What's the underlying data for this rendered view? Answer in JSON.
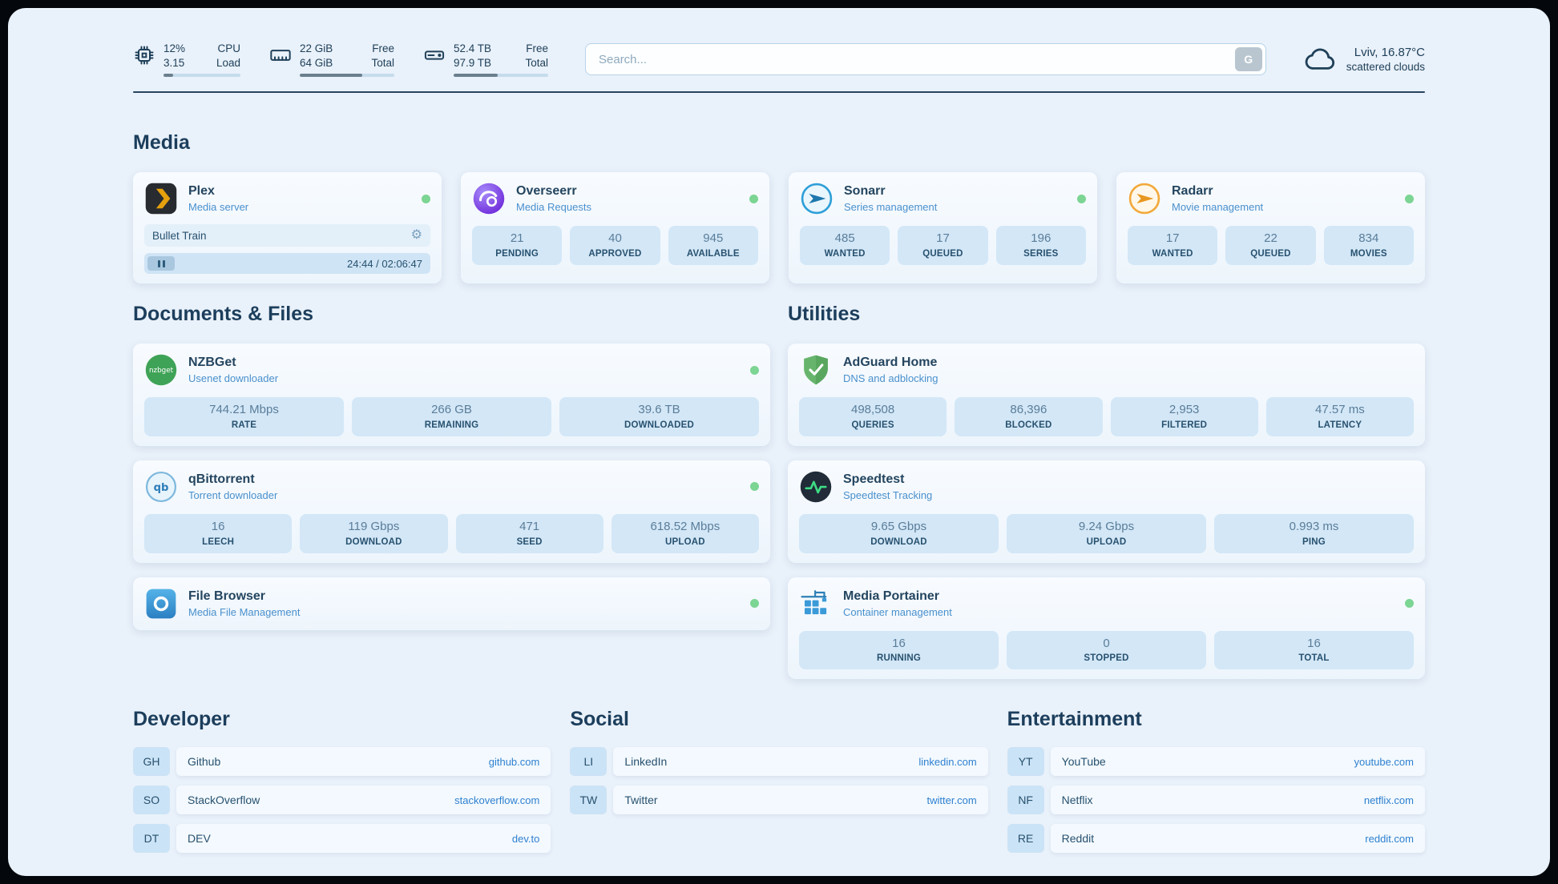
{
  "palette": {
    "background": "#e9f1fa",
    "card": "#f4f9fe",
    "stat_box": "#d3e7f7",
    "link": "#2f80d0",
    "status_ok": "#7cd593",
    "heading": "#1c3e5c"
  },
  "icons": {
    "gear": "⚙"
  },
  "topbar": {
    "cpu": {
      "value": "12%",
      "load": "3.15",
      "label_top": "CPU",
      "label_bottom": "Load",
      "percent": 12
    },
    "memory": {
      "free": "22 GiB",
      "total": "64 GiB",
      "label_top": "Free",
      "label_bottom": "Total",
      "percent": 66
    },
    "disk": {
      "free": "52.4 TB",
      "total": "97.9 TB",
      "label_top": "Free",
      "label_bottom": "Total",
      "percent": 47
    },
    "search": {
      "placeholder": "Search...",
      "provider_label": "G"
    },
    "weather": {
      "location": "Lviv, 16.87°C",
      "description": "scattered clouds"
    }
  },
  "media": {
    "title": "Media",
    "plex": {
      "name": "Plex",
      "desc": "Media server",
      "now_playing": "Bullet Train",
      "time": "24:44 / 02:06:47"
    },
    "overseerr": {
      "name": "Overseerr",
      "desc": "Media Requests",
      "stats": [
        {
          "value": "21",
          "label": "PENDING"
        },
        {
          "value": "40",
          "label": "APPROVED"
        },
        {
          "value": "945",
          "label": "AVAILABLE"
        }
      ]
    },
    "sonarr": {
      "name": "Sonarr",
      "desc": "Series management",
      "stats": [
        {
          "value": "485",
          "label": "WANTED"
        },
        {
          "value": "17",
          "label": "QUEUED"
        },
        {
          "value": "196",
          "label": "SERIES"
        }
      ]
    },
    "radarr": {
      "name": "Radarr",
      "desc": "Movie management",
      "stats": [
        {
          "value": "17",
          "label": "WANTED"
        },
        {
          "value": "22",
          "label": "QUEUED"
        },
        {
          "value": "834",
          "label": "MOVIES"
        }
      ]
    }
  },
  "documents": {
    "title": "Documents & Files",
    "nzbget": {
      "name": "NZBGet",
      "desc": "Usenet downloader",
      "stats": [
        {
          "value": "744.21 Mbps",
          "label": "RATE"
        },
        {
          "value": "266 GB",
          "label": "REMAINING"
        },
        {
          "value": "39.6 TB",
          "label": "DOWNLOADED"
        }
      ]
    },
    "qbittorrent": {
      "name": "qBittorrent",
      "desc": "Torrent downloader",
      "stats": [
        {
          "value": "16",
          "label": "LEECH"
        },
        {
          "value": "119 Gbps",
          "label": "DOWNLOAD"
        },
        {
          "value": "471",
          "label": "SEED"
        },
        {
          "value": "618.52 Mbps",
          "label": "UPLOAD"
        }
      ]
    },
    "filebrowser": {
      "name": "File Browser",
      "desc": "Media File Management"
    }
  },
  "utilities": {
    "title": "Utilities",
    "adguard": {
      "name": "AdGuard Home",
      "desc": "DNS and adblocking",
      "stats": [
        {
          "value": "498,508",
          "label": "QUERIES"
        },
        {
          "value": "86,396",
          "label": "BLOCKED"
        },
        {
          "value": "2,953",
          "label": "FILTERED"
        },
        {
          "value": "47.57 ms",
          "label": "LATENCY"
        }
      ]
    },
    "speedtest": {
      "name": "Speedtest",
      "desc": "Speedtest Tracking",
      "stats": [
        {
          "value": "9.65 Gbps",
          "label": "DOWNLOAD"
        },
        {
          "value": "9.24 Gbps",
          "label": "UPLOAD"
        },
        {
          "value": "0.993 ms",
          "label": "PING"
        }
      ]
    },
    "portainer": {
      "name": "Media Portainer",
      "desc": "Container management",
      "stats": [
        {
          "value": "16",
          "label": "RUNNING"
        },
        {
          "value": "0",
          "label": "STOPPED"
        },
        {
          "value": "16",
          "label": "TOTAL"
        }
      ]
    }
  },
  "bookmarks": {
    "developer": {
      "title": "Developer",
      "items": [
        {
          "abbr": "GH",
          "name": "Github",
          "href": "github.com"
        },
        {
          "abbr": "SO",
          "name": "StackOverflow",
          "href": "stackoverflow.com"
        },
        {
          "abbr": "DT",
          "name": "DEV",
          "href": "dev.to"
        }
      ]
    },
    "social": {
      "title": "Social",
      "items": [
        {
          "abbr": "LI",
          "name": "LinkedIn",
          "href": "linkedin.com"
        },
        {
          "abbr": "TW",
          "name": "Twitter",
          "href": "twitter.com"
        }
      ]
    },
    "entertainment": {
      "title": "Entertainment",
      "items": [
        {
          "abbr": "YT",
          "name": "YouTube",
          "href": "youtube.com"
        },
        {
          "abbr": "NF",
          "name": "Netflix",
          "href": "netflix.com"
        },
        {
          "abbr": "RE",
          "name": "Reddit",
          "href": "reddit.com"
        }
      ]
    }
  }
}
